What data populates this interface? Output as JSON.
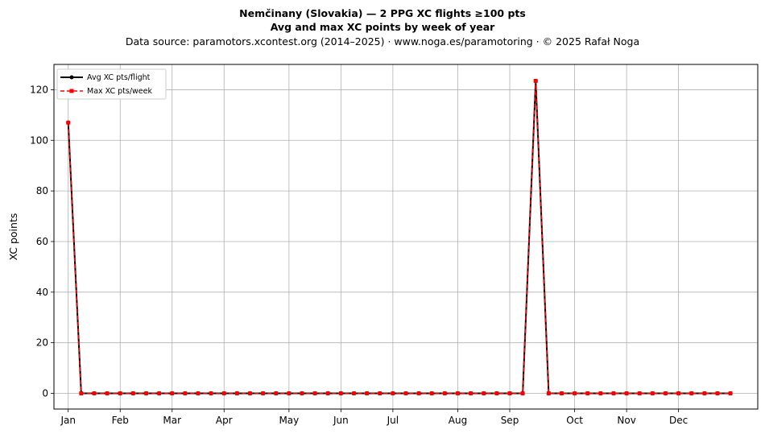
{
  "title_line1": "Nemčinany (Slovakia)  —  2 PPG XC flights ≥100 pts",
  "title_line2": "Avg and max XC points by week of year",
  "title_line3": "Data source: paramotors.xcontest.org (2014–2025)  ·  www.noga.es/paramotoring  ·  © 2025 Rafał Noga",
  "chart_data": {
    "type": "line",
    "xlabel": "",
    "ylabel": "XC points",
    "xlim": [
      -0.1,
      54.1
    ],
    "ylim": [
      -6.2,
      130
    ],
    "grid": true,
    "legend_position": "top-left",
    "x_ticks": [
      {
        "label": "Jan",
        "week": 1
      },
      {
        "label": "Feb",
        "week": 5
      },
      {
        "label": "Mar",
        "week": 9
      },
      {
        "label": "Apr",
        "week": 13
      },
      {
        "label": "May",
        "week": 18
      },
      {
        "label": "Jun",
        "week": 22
      },
      {
        "label": "Jul",
        "week": 26
      },
      {
        "label": "Aug",
        "week": 31
      },
      {
        "label": "Sep",
        "week": 35
      },
      {
        "label": "Oct",
        "week": 40
      },
      {
        "label": "Nov",
        "week": 44
      },
      {
        "label": "Dec",
        "week": 48
      }
    ],
    "y_ticks": [
      0,
      20,
      40,
      60,
      80,
      100,
      120
    ],
    "x": [
      1,
      2,
      3,
      4,
      5,
      6,
      7,
      8,
      9,
      10,
      11,
      12,
      13,
      14,
      15,
      16,
      17,
      18,
      19,
      20,
      21,
      22,
      23,
      24,
      25,
      26,
      27,
      28,
      29,
      30,
      31,
      32,
      33,
      34,
      35,
      36,
      37,
      38,
      39,
      40,
      41,
      42,
      43,
      44,
      45,
      46,
      47,
      48,
      49,
      50,
      51,
      52
    ],
    "series": [
      {
        "name": "Avg XC pts/flight",
        "color": "#000000",
        "style": "solid",
        "marker": "circle",
        "values": [
          107,
          0,
          0,
          0,
          0,
          0,
          0,
          0,
          0,
          0,
          0,
          0,
          0,
          0,
          0,
          0,
          0,
          0,
          0,
          0,
          0,
          0,
          0,
          0,
          0,
          0,
          0,
          0,
          0,
          0,
          0,
          0,
          0,
          0,
          0,
          0,
          123.5,
          0,
          0,
          0,
          0,
          0,
          0,
          0,
          0,
          0,
          0,
          0,
          0,
          0,
          0,
          0
        ]
      },
      {
        "name": "Max XC pts/week",
        "color": "#ff0000",
        "style": "dashed",
        "marker": "square",
        "values": [
          107,
          0,
          0,
          0,
          0,
          0,
          0,
          0,
          0,
          0,
          0,
          0,
          0,
          0,
          0,
          0,
          0,
          0,
          0,
          0,
          0,
          0,
          0,
          0,
          0,
          0,
          0,
          0,
          0,
          0,
          0,
          0,
          0,
          0,
          0,
          0,
          123.5,
          0,
          0,
          0,
          0,
          0,
          0,
          0,
          0,
          0,
          0,
          0,
          0,
          0,
          0,
          0
        ]
      }
    ]
  }
}
